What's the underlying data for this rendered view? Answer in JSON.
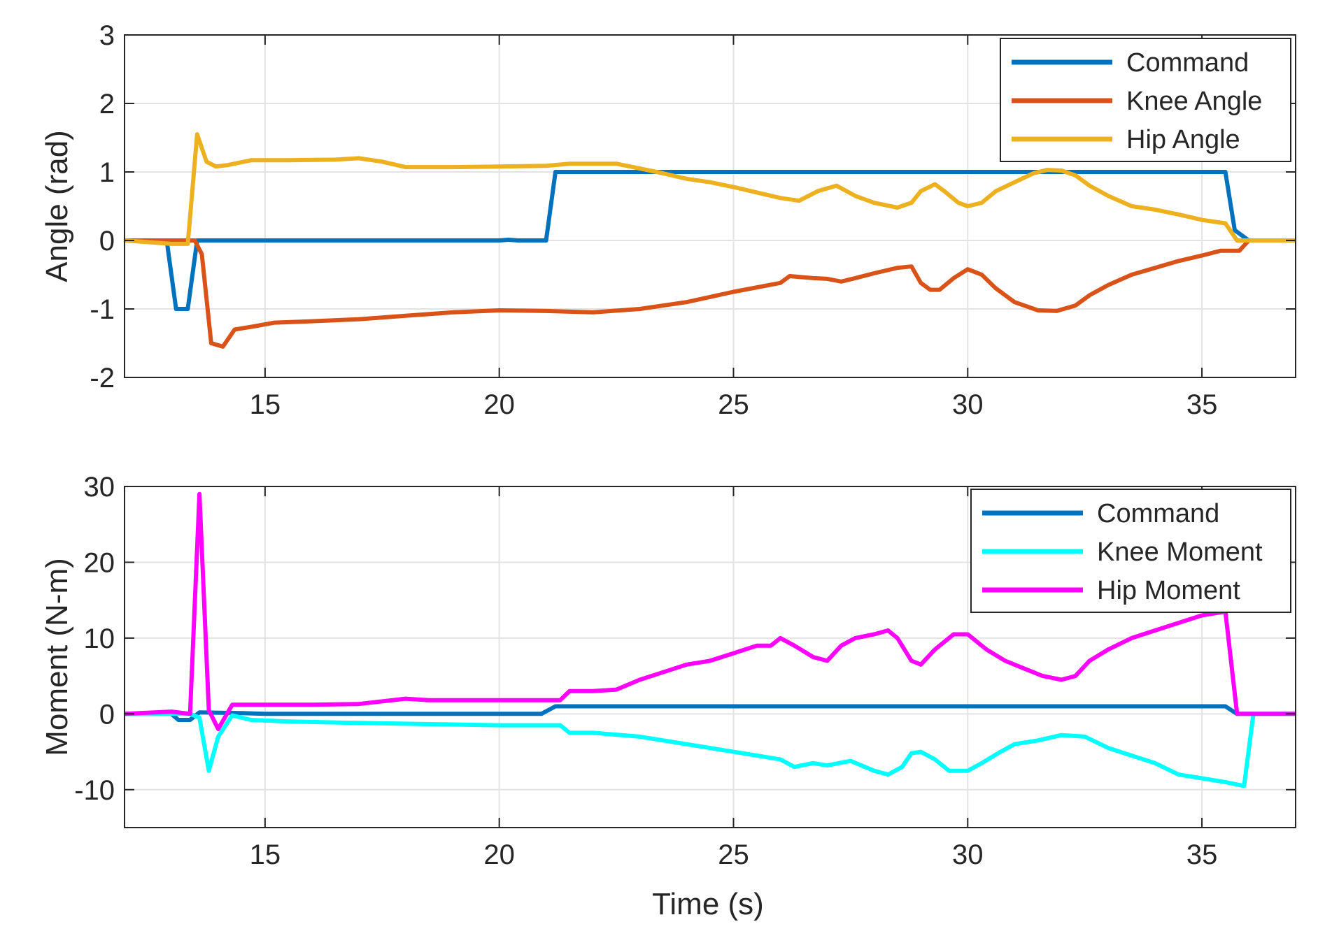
{
  "figure": {
    "xlabel": "Time (s)"
  },
  "chart_data": [
    {
      "type": "line",
      "title": "",
      "xlabel": "",
      "ylabel": "Angle (rad)",
      "xlim": [
        12,
        37
      ],
      "ylim": [
        -2,
        3
      ],
      "xticks": [
        15,
        20,
        25,
        30,
        35
      ],
      "xtick_labels": [
        "15",
        "20",
        "25",
        "30",
        "35"
      ],
      "yticks": [
        -2,
        -1,
        0,
        1,
        2,
        3
      ],
      "ytick_labels": [
        "-2",
        "-1",
        "0",
        "1",
        "2",
        "3"
      ],
      "grid": true,
      "legend_position": "top-right",
      "series": [
        {
          "name": "Command",
          "color": "#0072BD",
          "x": [
            12,
            12.9,
            13.1,
            13.35,
            13.55,
            14.0,
            20.0,
            20.2,
            20.4,
            21.0,
            21.2,
            35.5,
            35.7,
            36.0,
            37
          ],
          "y": [
            0,
            0,
            -1.0,
            -1.0,
            0,
            0,
            0,
            0.01,
            0,
            0,
            1.0,
            1.0,
            0.15,
            0,
            0
          ]
        },
        {
          "name": "Knee Angle",
          "color": "#D95319",
          "x": [
            12,
            13.0,
            13.5,
            13.65,
            13.85,
            14.1,
            14.35,
            14.8,
            15.2,
            16.0,
            17.0,
            18.0,
            19.0,
            20.0,
            21.0,
            22.0,
            23.0,
            24.0,
            25.0,
            26.0,
            26.2,
            26.7,
            27.0,
            27.3,
            27.6,
            28.0,
            28.5,
            28.8,
            29.0,
            29.2,
            29.4,
            29.7,
            30.0,
            30.3,
            30.6,
            31.0,
            31.5,
            31.9,
            32.3,
            32.6,
            33.0,
            33.5,
            34.0,
            34.5,
            35.0,
            35.4,
            35.8,
            36.0,
            37
          ],
          "y": [
            0,
            0,
            0,
            -0.2,
            -1.5,
            -1.55,
            -1.3,
            -1.25,
            -1.2,
            -1.18,
            -1.15,
            -1.1,
            -1.05,
            -1.02,
            -1.03,
            -1.05,
            -1.0,
            -0.9,
            -0.75,
            -0.62,
            -0.52,
            -0.55,
            -0.56,
            -0.6,
            -0.55,
            -0.48,
            -0.4,
            -0.38,
            -0.62,
            -0.72,
            -0.72,
            -0.55,
            -0.42,
            -0.5,
            -0.7,
            -0.9,
            -1.02,
            -1.03,
            -0.95,
            -0.8,
            -0.65,
            -0.5,
            -0.4,
            -0.3,
            -0.22,
            -0.15,
            -0.15,
            0,
            0
          ]
        },
        {
          "name": "Hip Angle",
          "color": "#EDB120",
          "x": [
            12,
            13.0,
            13.35,
            13.55,
            13.75,
            13.95,
            14.2,
            14.7,
            15.5,
            16.5,
            17.0,
            17.5,
            18.0,
            19.0,
            20.0,
            21.0,
            21.5,
            22.0,
            22.5,
            23.0,
            23.5,
            24.0,
            24.5,
            25.0,
            25.5,
            26.0,
            26.4,
            26.8,
            27.2,
            27.6,
            28.0,
            28.5,
            28.8,
            29.0,
            29.3,
            29.5,
            29.8,
            30.0,
            30.3,
            30.6,
            31.0,
            31.4,
            31.7,
            32.0,
            32.3,
            32.6,
            33.0,
            33.5,
            34.0,
            34.5,
            35.0,
            35.5,
            35.75,
            36.0,
            37
          ],
          "y": [
            0,
            -0.05,
            -0.05,
            1.55,
            1.15,
            1.08,
            1.1,
            1.17,
            1.17,
            1.18,
            1.2,
            1.15,
            1.07,
            1.07,
            1.08,
            1.09,
            1.12,
            1.12,
            1.12,
            1.05,
            0.98,
            0.9,
            0.85,
            0.78,
            0.7,
            0.62,
            0.58,
            0.72,
            0.8,
            0.65,
            0.55,
            0.48,
            0.55,
            0.72,
            0.82,
            0.72,
            0.55,
            0.5,
            0.55,
            0.72,
            0.85,
            0.98,
            1.03,
            1.02,
            0.95,
            0.8,
            0.65,
            0.5,
            0.45,
            0.38,
            0.3,
            0.25,
            0,
            0,
            0
          ]
        }
      ]
    },
    {
      "type": "line",
      "title": "",
      "xlabel": "Time (s)",
      "ylabel": "Moment (N-m)",
      "xlim": [
        12,
        37
      ],
      "ylim": [
        -15,
        30
      ],
      "xticks": [
        15,
        20,
        25,
        30,
        35
      ],
      "xtick_labels": [
        "15",
        "20",
        "25",
        "30",
        "35"
      ],
      "yticks": [
        -10,
        0,
        10,
        20,
        30
      ],
      "ytick_labels": [
        "-10",
        "0",
        "10",
        "20",
        "30"
      ],
      "grid": true,
      "legend_position": "top-right",
      "series": [
        {
          "name": "Command",
          "color": "#0072BD",
          "x": [
            12,
            13.0,
            13.15,
            13.4,
            13.6,
            14.5,
            15.0,
            20.9,
            21.2,
            35.5,
            35.75,
            37
          ],
          "y": [
            0,
            0,
            -0.8,
            -0.8,
            0.2,
            0.1,
            0,
            0,
            1,
            1,
            0,
            0
          ]
        },
        {
          "name": "Knee Moment",
          "color": "#00FFFF",
          "x": [
            12,
            13.4,
            13.6,
            13.8,
            14.0,
            14.3,
            14.7,
            15.5,
            17.0,
            19.0,
            20.0,
            21.0,
            21.3,
            21.5,
            22.0,
            23.0,
            24.0,
            25.0,
            26.0,
            26.3,
            26.7,
            27.0,
            27.5,
            28.0,
            28.3,
            28.6,
            28.8,
            29.0,
            29.3,
            29.6,
            30.0,
            30.3,
            30.7,
            31.0,
            31.5,
            32.0,
            32.5,
            33.0,
            33.5,
            34.0,
            34.5,
            35.0,
            35.5,
            35.9,
            36.1,
            37
          ],
          "y": [
            0,
            0,
            -0.5,
            -7.5,
            -3.0,
            -0.2,
            -0.8,
            -1.0,
            -1.2,
            -1.4,
            -1.5,
            -1.5,
            -1.5,
            -2.5,
            -2.5,
            -3.0,
            -4.0,
            -5.0,
            -6.0,
            -7.0,
            -6.5,
            -6.8,
            -6.2,
            -7.5,
            -8.0,
            -7.0,
            -5.2,
            -5.0,
            -6.0,
            -7.5,
            -7.5,
            -6.5,
            -5.0,
            -4.0,
            -3.5,
            -2.8,
            -3.0,
            -4.5,
            -5.5,
            -6.5,
            -8.0,
            -8.5,
            -9.0,
            -9.5,
            0,
            0
          ]
        },
        {
          "name": "Hip Moment",
          "color": "#FF00FF",
          "x": [
            12,
            13.0,
            13.4,
            13.6,
            13.8,
            14.0,
            14.3,
            14.7,
            15.0,
            16.0,
            17.0,
            18.0,
            18.5,
            19.0,
            20.0,
            21.0,
            21.3,
            21.5,
            22.0,
            22.5,
            23.0,
            23.5,
            24.0,
            24.5,
            25.0,
            25.5,
            25.8,
            26.0,
            26.3,
            26.7,
            27.0,
            27.3,
            27.6,
            28.0,
            28.3,
            28.5,
            28.8,
            29.0,
            29.3,
            29.7,
            30.0,
            30.4,
            30.8,
            31.2,
            31.6,
            32.0,
            32.3,
            32.6,
            33.0,
            33.5,
            34.0,
            34.5,
            35.0,
            35.5,
            35.75,
            36.0,
            37
          ],
          "y": [
            0,
            0.3,
            0,
            29,
            0.5,
            -2.0,
            1.2,
            1.2,
            1.2,
            1.2,
            1.3,
            2.0,
            1.8,
            1.8,
            1.8,
            1.8,
            1.8,
            3.0,
            3.0,
            3.2,
            4.5,
            5.5,
            6.5,
            7.0,
            8.0,
            9.0,
            9.0,
            10.0,
            9.0,
            7.5,
            7.0,
            9.0,
            10.0,
            10.5,
            11.0,
            10.0,
            7.0,
            6.5,
            8.5,
            10.5,
            10.5,
            8.5,
            7.0,
            6.0,
            5.0,
            4.5,
            5.0,
            7.0,
            8.5,
            10.0,
            11.0,
            12.0,
            13.0,
            13.5,
            0,
            0,
            0
          ]
        }
      ]
    }
  ]
}
